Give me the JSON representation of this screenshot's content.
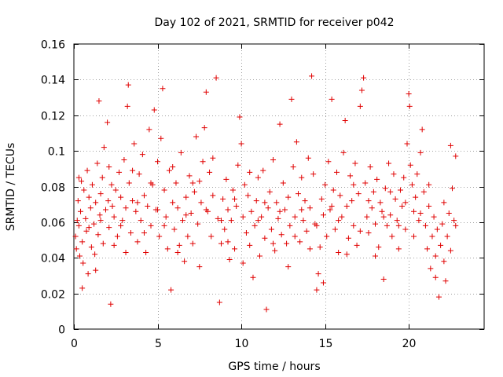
{
  "chart_data": {
    "type": "scatter",
    "title": "Day 102 of 2021, SRMTID for receiver p042",
    "xlabel": "GPS time / hours",
    "ylabel": "SRMTID / TECUs",
    "xlim": [
      0,
      24.5
    ],
    "ylim": [
      0,
      0.16
    ],
    "xticks": [
      0,
      5,
      10,
      15,
      20
    ],
    "xtick_labels": [
      "0",
      "5",
      "10",
      "15",
      "20"
    ],
    "yticks": [
      0,
      0.02,
      0.04,
      0.06,
      0.08,
      0.1,
      0.12,
      0.14,
      0.16
    ],
    "ytick_labels": [
      "0",
      "0.02",
      "0.04",
      "0.06",
      "0.08",
      "0.1",
      "0.12",
      "0.14",
      "0.16"
    ],
    "grid": true,
    "marker": "+",
    "marker_color": "#e00000",
    "series": [
      {
        "name": "SRMTID",
        "points": [
          [
            0.1,
            0.052
          ],
          [
            0.15,
            0.045
          ],
          [
            0.2,
            0.061
          ],
          [
            0.25,
            0.072
          ],
          [
            0.3,
            0.058
          ],
          [
            0.35,
            0.041
          ],
          [
            0.4,
            0.066
          ],
          [
            0.45,
            0.083
          ],
          [
            0.5,
            0.049
          ],
          [
            0.55,
            0.037
          ],
          [
            0.6,
            0.078
          ],
          [
            0.7,
            0.062
          ],
          [
            0.75,
            0.055
          ],
          [
            0.8,
            0.089
          ],
          [
            0.85,
            0.031
          ],
          [
            0.9,
            0.074
          ],
          [
            1.0,
            0.068
          ],
          [
            1.05,
            0.046
          ],
          [
            1.1,
            0.081
          ],
          [
            1.2,
            0.059
          ],
          [
            1.25,
            0.042
          ],
          [
            1.3,
            0.071
          ],
          [
            1.4,
            0.093
          ],
          [
            1.45,
            0.053
          ],
          [
            1.5,
            0.128
          ],
          [
            1.55,
            0.064
          ],
          [
            1.6,
            0.076
          ],
          [
            1.7,
            0.085
          ],
          [
            1.75,
            0.048
          ],
          [
            1.8,
            0.102
          ],
          [
            1.9,
            0.067
          ],
          [
            2.0,
            0.116
          ],
          [
            2.05,
            0.072
          ],
          [
            2.1,
            0.057
          ],
          [
            2.2,
            0.014
          ],
          [
            2.25,
            0.081
          ],
          [
            2.3,
            0.069
          ],
          [
            2.4,
            0.063
          ],
          [
            2.5,
            0.078
          ],
          [
            2.6,
            0.052
          ],
          [
            2.7,
            0.088
          ],
          [
            2.8,
            0.074
          ],
          [
            2.9,
            0.061
          ],
          [
            3.0,
            0.095
          ],
          [
            3.1,
            0.068
          ],
          [
            3.2,
            0.125
          ],
          [
            3.25,
            0.137
          ],
          [
            3.3,
            0.082
          ],
          [
            3.4,
            0.054
          ],
          [
            3.5,
            0.072
          ],
          [
            3.6,
            0.104
          ],
          [
            3.7,
            0.066
          ],
          [
            3.8,
            0.049
          ],
          [
            3.9,
            0.087
          ],
          [
            4.0,
            0.061
          ],
          [
            4.1,
            0.098
          ],
          [
            4.2,
            0.075
          ],
          [
            4.3,
            0.043
          ],
          [
            4.4,
            0.069
          ],
          [
            4.5,
            0.112
          ],
          [
            4.6,
            0.058
          ],
          [
            4.7,
            0.081
          ],
          [
            4.8,
            0.123
          ],
          [
            4.9,
            0.067
          ],
          [
            5.0,
            0.094
          ],
          [
            5.1,
            0.052
          ],
          [
            5.2,
            0.107
          ],
          [
            5.3,
            0.135
          ],
          [
            5.4,
            0.078
          ],
          [
            5.5,
            0.063
          ],
          [
            5.6,
            0.045
          ],
          [
            5.7,
            0.089
          ],
          [
            5.8,
            0.022
          ],
          [
            5.9,
            0.071
          ],
          [
            6.0,
            0.056
          ],
          [
            6.1,
            0.082
          ],
          [
            6.2,
            0.068
          ],
          [
            6.3,
            0.047
          ],
          [
            6.4,
            0.099
          ],
          [
            6.5,
            0.061
          ],
          [
            6.6,
            0.038
          ],
          [
            6.7,
            0.074
          ],
          [
            6.8,
            0.052
          ],
          [
            6.9,
            0.086
          ],
          [
            7.0,
            0.065
          ],
          [
            7.1,
            0.048
          ],
          [
            7.2,
            0.077
          ],
          [
            7.3,
            0.108
          ],
          [
            7.4,
            0.059
          ],
          [
            7.5,
            0.083
          ],
          [
            7.6,
            0.071
          ],
          [
            7.7,
            0.094
          ],
          [
            7.8,
            0.113
          ],
          [
            7.9,
            0.133
          ],
          [
            8.0,
            0.066
          ],
          [
            8.1,
            0.088
          ],
          [
            8.2,
            0.052
          ],
          [
            8.3,
            0.075
          ],
          [
            8.5,
            0.141
          ],
          [
            8.6,
            0.062
          ],
          [
            8.7,
            0.015
          ],
          [
            8.8,
            0.048
          ],
          [
            8.9,
            0.073
          ],
          [
            9.0,
            0.056
          ],
          [
            9.1,
            0.084
          ],
          [
            9.2,
            0.067
          ],
          [
            9.3,
            0.039
          ],
          [
            9.4,
            0.061
          ],
          [
            9.5,
            0.078
          ],
          [
            9.6,
            0.045
          ],
          [
            9.7,
            0.069
          ],
          [
            9.8,
            0.092
          ],
          [
            9.9,
            0.119
          ],
          [
            10.0,
            0.104
          ],
          [
            10.1,
            0.063
          ],
          [
            10.2,
            0.081
          ],
          [
            10.3,
            0.054
          ],
          [
            10.4,
            0.075
          ],
          [
            10.5,
            0.047
          ],
          [
            10.6,
            0.066
          ],
          [
            10.7,
            0.029
          ],
          [
            10.8,
            0.058
          ],
          [
            10.9,
            0.072
          ],
          [
            11.0,
            0.085
          ],
          [
            11.1,
            0.041
          ],
          [
            11.2,
            0.063
          ],
          [
            11.3,
            0.089
          ],
          [
            11.4,
            0.051
          ],
          [
            11.5,
            0.011
          ],
          [
            11.6,
            0.068
          ],
          [
            11.7,
            0.077
          ],
          [
            11.8,
            0.056
          ],
          [
            11.9,
            0.095
          ],
          [
            12.0,
            0.044
          ],
          [
            12.1,
            0.071
          ],
          [
            12.2,
            0.062
          ],
          [
            12.3,
            0.115
          ],
          [
            12.4,
            0.053
          ],
          [
            12.5,
            0.082
          ],
          [
            12.6,
            0.067
          ],
          [
            12.7,
            0.048
          ],
          [
            12.8,
            0.074
          ],
          [
            12.9,
            0.058
          ],
          [
            13.0,
            0.129
          ],
          [
            13.1,
            0.091
          ],
          [
            13.2,
            0.063
          ],
          [
            13.3,
            0.105
          ],
          [
            13.4,
            0.076
          ],
          [
            13.5,
            0.049
          ],
          [
            13.6,
            0.085
          ],
          [
            13.7,
            0.061
          ],
          [
            13.8,
            0.072
          ],
          [
            13.9,
            0.055
          ],
          [
            14.0,
            0.096
          ],
          [
            14.1,
            0.068
          ],
          [
            14.2,
            0.142
          ],
          [
            14.3,
            0.087
          ],
          [
            14.4,
            0.059
          ],
          [
            14.5,
            0.022
          ],
          [
            14.6,
            0.031
          ],
          [
            14.7,
            0.046
          ],
          [
            14.8,
            0.073
          ],
          [
            14.9,
            0.064
          ],
          [
            15.0,
            0.081
          ],
          [
            15.1,
            0.052
          ],
          [
            15.2,
            0.094
          ],
          [
            15.3,
            0.067
          ],
          [
            15.4,
            0.129
          ],
          [
            15.5,
            0.078
          ],
          [
            15.6,
            0.056
          ],
          [
            15.7,
            0.088
          ],
          [
            15.8,
            0.043
          ],
          [
            15.9,
            0.075
          ],
          [
            16.0,
            0.063
          ],
          [
            16.1,
            0.099
          ],
          [
            16.2,
            0.117
          ],
          [
            16.3,
            0.069
          ],
          [
            16.4,
            0.051
          ],
          [
            16.5,
            0.086
          ],
          [
            16.6,
            0.072
          ],
          [
            16.7,
            0.058
          ],
          [
            16.8,
            0.093
          ],
          [
            16.9,
            0.047
          ],
          [
            17.0,
            0.076
          ],
          [
            17.1,
            0.125
          ],
          [
            17.2,
            0.134
          ],
          [
            17.3,
            0.141
          ],
          [
            17.4,
            0.082
          ],
          [
            17.5,
            0.063
          ],
          [
            17.6,
            0.054
          ],
          [
            17.7,
            0.091
          ],
          [
            17.8,
            0.068
          ],
          [
            17.9,
            0.077
          ],
          [
            18.0,
            0.059
          ],
          [
            18.1,
            0.084
          ],
          [
            18.2,
            0.046
          ],
          [
            18.3,
            0.071
          ],
          [
            18.4,
            0.066
          ],
          [
            18.5,
            0.028
          ],
          [
            18.6,
            0.079
          ],
          [
            18.7,
            0.058
          ],
          [
            18.8,
            0.093
          ],
          [
            18.9,
            0.064
          ],
          [
            19.0,
            0.052
          ],
          [
            19.1,
            0.087
          ],
          [
            19.2,
            0.073
          ],
          [
            19.3,
            0.061
          ],
          [
            19.4,
            0.045
          ],
          [
            19.5,
            0.078
          ],
          [
            19.6,
            0.069
          ],
          [
            19.7,
            0.085
          ],
          [
            19.8,
            0.056
          ],
          [
            19.9,
            0.104
          ],
          [
            20.0,
            0.132
          ],
          [
            20.05,
            0.125
          ],
          [
            20.1,
            0.092
          ],
          [
            20.2,
            0.081
          ],
          [
            20.3,
            0.066
          ],
          [
            20.4,
            0.074
          ],
          [
            20.5,
            0.087
          ],
          [
            20.6,
            0.061
          ],
          [
            20.7,
            0.099
          ],
          [
            20.8,
            0.112
          ],
          [
            20.9,
            0.077
          ],
          [
            21.0,
            0.058
          ],
          [
            21.1,
            0.045
          ],
          [
            21.2,
            0.069
          ],
          [
            21.3,
            0.034
          ],
          [
            21.4,
            0.052
          ],
          [
            21.5,
            0.063
          ],
          [
            21.6,
            0.041
          ],
          [
            21.7,
            0.056
          ],
          [
            21.8,
            0.018
          ],
          [
            21.9,
            0.047
          ],
          [
            22.0,
            0.059
          ],
          [
            22.1,
            0.038
          ],
          [
            22.2,
            0.027
          ],
          [
            22.3,
            0.052
          ],
          [
            22.4,
            0.065
          ],
          [
            22.5,
            0.103
          ],
          [
            22.6,
            0.079
          ],
          [
            22.7,
            0.061
          ],
          [
            22.8,
            0.097
          ],
          [
            0.3,
            0.085
          ],
          [
            0.5,
            0.023
          ],
          [
            0.9,
            0.057
          ],
          [
            1.3,
            0.033
          ],
          [
            1.6,
            0.061
          ],
          [
            2.1,
            0.091
          ],
          [
            2.4,
            0.047
          ],
          [
            2.8,
            0.058
          ],
          [
            3.1,
            0.043
          ],
          [
            3.5,
            0.089
          ],
          [
            3.8,
            0.071
          ],
          [
            4.2,
            0.054
          ],
          [
            4.6,
            0.082
          ],
          [
            5.0,
            0.067
          ],
          [
            5.4,
            0.058
          ],
          [
            5.9,
            0.091
          ],
          [
            6.2,
            0.043
          ],
          [
            6.7,
            0.064
          ],
          [
            7.1,
            0.082
          ],
          [
            7.5,
            0.035
          ],
          [
            7.9,
            0.067
          ],
          [
            8.3,
            0.096
          ],
          [
            8.8,
            0.061
          ],
          [
            9.2,
            0.049
          ],
          [
            9.6,
            0.073
          ],
          [
            10.1,
            0.037
          ],
          [
            10.5,
            0.088
          ],
          [
            11.0,
            0.061
          ],
          [
            11.4,
            0.071
          ],
          [
            11.9,
            0.048
          ],
          [
            12.3,
            0.066
          ],
          [
            12.8,
            0.035
          ],
          [
            13.2,
            0.052
          ],
          [
            13.6,
            0.067
          ],
          [
            14.1,
            0.045
          ],
          [
            14.5,
            0.058
          ],
          [
            14.9,
            0.026
          ],
          [
            15.4,
            0.069
          ],
          [
            15.8,
            0.061
          ],
          [
            16.3,
            0.042
          ],
          [
            16.7,
            0.081
          ],
          [
            17.1,
            0.055
          ],
          [
            17.6,
            0.072
          ],
          [
            18.0,
            0.041
          ],
          [
            18.5,
            0.063
          ],
          [
            18.9,
            0.077
          ],
          [
            19.4,
            0.058
          ],
          [
            19.8,
            0.071
          ],
          [
            20.3,
            0.052
          ],
          [
            20.7,
            0.065
          ],
          [
            21.2,
            0.081
          ],
          [
            21.6,
            0.029
          ],
          [
            22.1,
            0.071
          ],
          [
            22.5,
            0.044
          ],
          [
            22.8,
            0.058
          ]
        ]
      }
    ]
  }
}
